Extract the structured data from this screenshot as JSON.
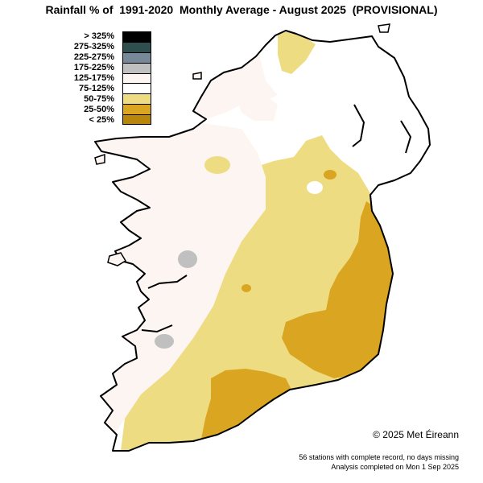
{
  "title": "Rainfall % of  1991-2020  Monthly Average - August 2025  (PROVISIONAL)",
  "legend": [
    {
      "label": "> 325%",
      "color": "#000000"
    },
    {
      "label": "275-325%",
      "color": "#2f4f4f"
    },
    {
      "label": "225-275%",
      "color": "#778899"
    },
    {
      "label": "175-225%",
      "color": "#c0c0c0"
    },
    {
      "label": "125-175%",
      "color": "#fdf5f2"
    },
    {
      "label": "75-125%",
      "color": "#ffffff"
    },
    {
      "label": "50-75%",
      "color": "#eedc82"
    },
    {
      "label": "25-50%",
      "color": "#daa520"
    },
    {
      "label": "< 25%",
      "color": "#b8860b"
    }
  ],
  "copyright": "© 2025 Met Éireann",
  "footnote_stations": "56 stations with complete record, no days missing",
  "footnote_analysis": "Analysis completed on Mon 1 Sep 2025"
}
